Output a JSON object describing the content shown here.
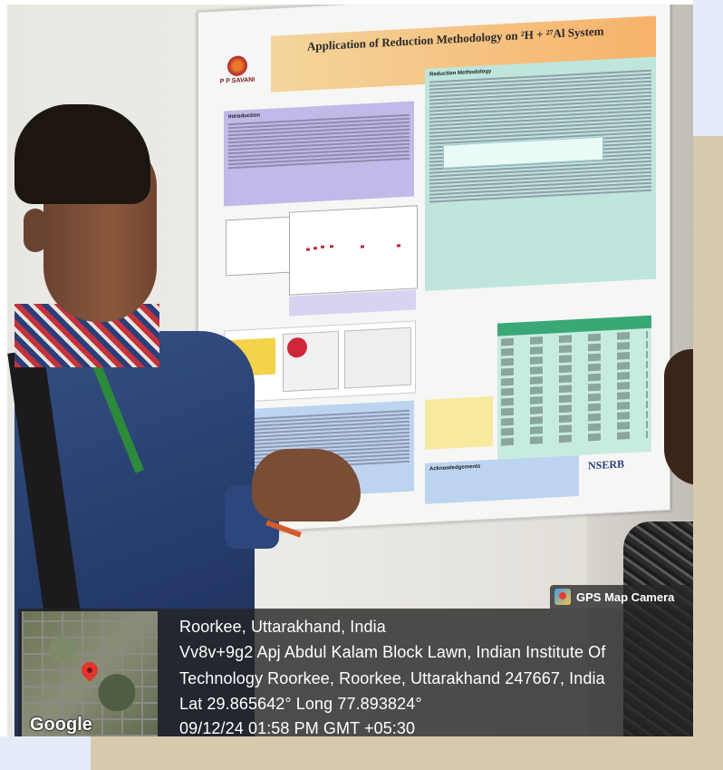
{
  "gps": {
    "badge_label": "GPS Map Camera",
    "map_watermark": "Google",
    "city_line": "Roorkee, Uttarakhand, India",
    "address_line1": "Vv8v+9g2 Apj Abdul Kalam Block Lawn, Indian Institute Of",
    "address_line2": "Technology Roorkee, Roorkee, Uttarakhand 247667, India",
    "coordinates": "Lat 29.865642° Long 77.893824°",
    "timestamp": "09/12/24 01:58 PM GMT +05:30"
  },
  "poster": {
    "title": "Application of Reduction Methodology on ²H + ²⁷Al System",
    "logo_text": "P P SAVANI",
    "intro_heading": "Introduction",
    "method_heading": "Reduction Methodology",
    "ack_heading": "Acknowledgements",
    "sponsor": "NSERB"
  },
  "colors": {
    "gps_overlay": "#242424",
    "pin": "#e2352b",
    "poster_title_band": "#f7b26a",
    "intro_panel": "#c2b9e8",
    "method_panel": "#bfe6dc",
    "table_header": "#3aa776"
  }
}
